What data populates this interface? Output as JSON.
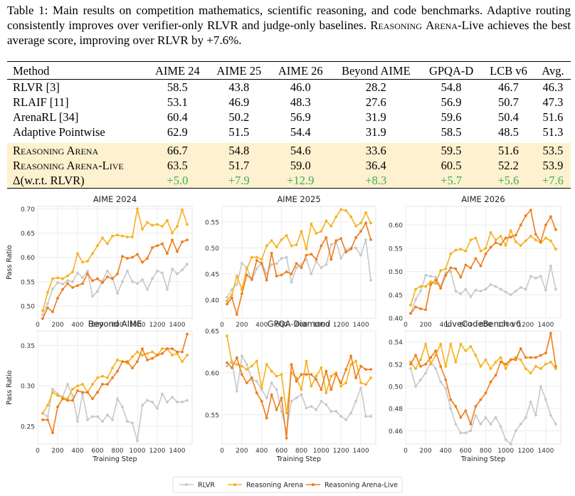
{
  "caption": {
    "label": "Table 1:",
    "text_a": "Main results on competition mathematics, scientific reasoning, and code benchmarks. Adaptive routing consistently improves over verifier-only RLVR and judge-only baselines.",
    "name_a": "Reasoning",
    "name_b": "Arena",
    "text_b": "-Live achieves the best average score, improving over RLVR by",
    "delta": "+7.6%."
  },
  "table": {
    "headers": [
      "Method",
      "AIME 24",
      "AIME 25",
      "AIME 26",
      "Beyond AIME",
      "GPQA-D",
      "LCB v6",
      "Avg."
    ],
    "baselines": [
      {
        "method": "RLVR [3]",
        "values": [
          "58.5",
          "43.8",
          "46.0",
          "28.2",
          "54.8",
          "46.7",
          "46.3"
        ]
      },
      {
        "method": "RLAIF [11]",
        "values": [
          "53.1",
          "46.9",
          "48.3",
          "27.6",
          "56.9",
          "50.7",
          "47.3"
        ]
      },
      {
        "method": "ArenaRL [34]",
        "values": [
          "60.4",
          "50.2",
          "56.9",
          "31.9",
          "59.6",
          "50.4",
          "51.6"
        ]
      },
      {
        "method": "Adaptive Pointwise",
        "values": [
          "62.9",
          "51.5",
          "54.4",
          "31.9",
          "58.5",
          "48.5",
          "51.3"
        ]
      }
    ],
    "ours": [
      {
        "method": "Reasoning Arena",
        "values": [
          "66.7",
          "54.8",
          "54.6",
          "33.6",
          "59.5",
          "51.6",
          "53.5"
        ],
        "bold": [
          true,
          true,
          false,
          false,
          false,
          false,
          false
        ]
      },
      {
        "method": "Reasoning Arena-Live",
        "values": [
          "63.5",
          "51.7",
          "59.0",
          "36.4",
          "60.5",
          "52.2",
          "53.9"
        ],
        "bold": [
          false,
          false,
          true,
          true,
          true,
          true,
          true
        ]
      }
    ],
    "delta": {
      "method": "Δ(w.r.t. RLVR)",
      "values": [
        "+5.0",
        "+7.9",
        "+12.9",
        "+8.3",
        "+5.7",
        "+5.6",
        "+7.6"
      ]
    }
  },
  "chart_data": [
    {
      "type": "line",
      "title": "AIME 2024",
      "ylabel": "Pass Ratio",
      "xlabel": "",
      "xlim": [
        0,
        1550
      ],
      "ylim": [
        0.475,
        0.705
      ],
      "yticks": [
        0.5,
        0.55,
        0.6,
        0.65,
        0.7
      ],
      "xticks": [
        0,
        200,
        400,
        600,
        800,
        1000,
        1200,
        1400
      ],
      "x": [
        50,
        100,
        150,
        200,
        250,
        300,
        350,
        400,
        450,
        500,
        550,
        600,
        650,
        700,
        750,
        800,
        850,
        900,
        950,
        1000,
        1050,
        1100,
        1150,
        1200,
        1250,
        1300,
        1350,
        1400,
        1450,
        1500
      ],
      "series": [
        {
          "name": "RLVR",
          "values": [
            0.482,
            0.505,
            0.535,
            0.548,
            0.545,
            0.552,
            0.55,
            0.568,
            0.558,
            0.572,
            0.52,
            0.53,
            0.552,
            0.572,
            0.558,
            0.526,
            0.55,
            0.572,
            0.55,
            0.546,
            0.554,
            0.534,
            0.556,
            0.572,
            0.568,
            0.534,
            0.576,
            0.566,
            0.574,
            0.586
          ]
        },
        {
          "name": "Reasoning Arena",
          "values": [
            0.49,
            0.528,
            0.556,
            0.558,
            0.556,
            0.562,
            0.57,
            0.608,
            0.59,
            0.592,
            0.608,
            0.624,
            0.64,
            0.628,
            0.644,
            0.646,
            0.644,
            0.642,
            0.642,
            0.7,
            0.658,
            0.672,
            0.666,
            0.668,
            0.664,
            0.676,
            0.65,
            0.664,
            0.698,
            0.668
          ]
        },
        {
          "name": "Reasoning Arena-Live",
          "values": [
            0.474,
            0.496,
            0.488,
            0.516,
            0.534,
            0.546,
            0.538,
            0.542,
            0.546,
            0.566,
            0.552,
            0.556,
            0.548,
            0.56,
            0.556,
            0.566,
            0.602,
            0.598,
            0.6,
            0.606,
            0.59,
            0.598,
            0.62,
            0.624,
            0.628,
            0.608,
            0.636,
            0.612,
            0.632,
            0.636
          ]
        }
      ]
    },
    {
      "type": "line",
      "title": "AIME 2025",
      "ylabel": "",
      "xlabel": "",
      "xlim": [
        0,
        1550
      ],
      "ylim": [
        0.365,
        0.58
      ],
      "yticks": [
        0.4,
        0.45,
        0.5,
        0.55
      ],
      "xticks": [
        0,
        200,
        400,
        600,
        800,
        1000,
        1200,
        1400
      ],
      "x": [
        50,
        100,
        150,
        200,
        250,
        300,
        350,
        400,
        450,
        500,
        550,
        600,
        650,
        700,
        750,
        800,
        850,
        900,
        950,
        1000,
        1050,
        1100,
        1150,
        1200,
        1250,
        1300,
        1350,
        1400,
        1450,
        1500
      ],
      "series": [
        {
          "name": "RLVR",
          "values": [
            0.405,
            0.42,
            0.43,
            0.47,
            0.462,
            0.438,
            0.46,
            0.472,
            0.45,
            0.468,
            0.47,
            0.48,
            0.482,
            0.434,
            0.462,
            0.468,
            0.478,
            0.45,
            0.474,
            0.462,
            0.468,
            0.506,
            0.512,
            0.48,
            0.496,
            0.5,
            0.5,
            0.486,
            0.516,
            0.438
          ]
        },
        {
          "name": "Reasoning Arena",
          "values": [
            0.398,
            0.41,
            0.446,
            0.42,
            0.46,
            0.482,
            0.482,
            0.478,
            0.504,
            0.514,
            0.502,
            0.516,
            0.524,
            0.504,
            0.506,
            0.532,
            0.498,
            0.546,
            0.528,
            0.532,
            0.552,
            0.542,
            0.56,
            0.574,
            0.572,
            0.56,
            0.542,
            0.548,
            0.568,
            0.548
          ]
        },
        {
          "name": "Reasoning Arena-Live",
          "values": [
            0.392,
            0.404,
            0.372,
            0.412,
            0.448,
            0.44,
            0.476,
            0.47,
            0.438,
            0.49,
            0.446,
            0.448,
            0.454,
            0.45,
            0.47,
            0.462,
            0.486,
            0.488,
            0.478,
            0.504,
            0.52,
            0.478,
            0.514,
            0.518,
            0.492,
            0.498,
            0.52,
            0.532,
            0.548,
            0.516
          ]
        }
      ]
    },
    {
      "type": "line",
      "title": "AIME 2026",
      "ylabel": "",
      "xlabel": "",
      "xlim": [
        0,
        1550
      ],
      "ylim": [
        0.4,
        0.64
      ],
      "yticks": [
        0.4,
        0.45,
        0.5,
        0.55,
        0.6
      ],
      "xticks": [
        0,
        200,
        400,
        600,
        800,
        1000,
        1200,
        1400
      ],
      "x": [
        50,
        100,
        150,
        200,
        250,
        300,
        350,
        400,
        450,
        500,
        550,
        600,
        650,
        700,
        750,
        800,
        850,
        900,
        950,
        1000,
        1050,
        1100,
        1150,
        1200,
        1250,
        1300,
        1350,
        1400,
        1450,
        1500
      ],
      "series": [
        {
          "name": "RLVR",
          "values": [
            0.41,
            0.44,
            0.458,
            0.492,
            0.49,
            0.488,
            0.468,
            0.498,
            0.5,
            0.458,
            0.452,
            0.462,
            0.446,
            0.46,
            0.458,
            0.462,
            0.472,
            0.468,
            0.462,
            0.456,
            0.45,
            0.458,
            0.466,
            0.462,
            0.49,
            0.486,
            0.49,
            0.46,
            0.512,
            0.462
          ]
        },
        {
          "name": "Reasoning Arena",
          "values": [
            0.428,
            0.462,
            0.468,
            0.468,
            0.478,
            0.474,
            0.502,
            0.506,
            0.538,
            0.546,
            0.548,
            0.544,
            0.568,
            0.572,
            0.544,
            0.55,
            0.584,
            0.568,
            0.576,
            0.556,
            0.588,
            0.564,
            0.556,
            0.566,
            0.576,
            0.568,
            0.562,
            0.572,
            0.566,
            0.548
          ]
        },
        {
          "name": "Reasoning Arena-Live",
          "values": [
            0.41,
            0.424,
            0.42,
            0.418,
            0.472,
            0.482,
            0.464,
            0.492,
            0.508,
            0.506,
            0.488,
            0.514,
            0.508,
            0.528,
            0.512,
            0.538,
            0.552,
            0.562,
            0.558,
            0.572,
            0.574,
            0.578,
            0.6,
            0.62,
            0.632,
            0.58,
            0.564,
            0.6,
            0.618,
            0.59
          ]
        }
      ]
    },
    {
      "type": "line",
      "title": "Beyond AIME",
      "ylabel": "Pass Ratio",
      "xlabel": "Training Step",
      "xlim": [
        0,
        1550
      ],
      "ylim": [
        0.228,
        0.368
      ],
      "yticks": [
        0.25,
        0.3,
        0.35
      ],
      "xticks": [
        0,
        200,
        400,
        600,
        800,
        1000,
        1200,
        1400
      ],
      "x": [
        50,
        100,
        150,
        200,
        250,
        300,
        350,
        400,
        450,
        500,
        550,
        600,
        650,
        700,
        750,
        800,
        850,
        900,
        950,
        1000,
        1050,
        1100,
        1150,
        1200,
        1250,
        1300,
        1350,
        1400,
        1450,
        1500
      ],
      "series": [
        {
          "name": "RLVR",
          "values": [
            0.266,
            0.262,
            0.296,
            0.29,
            0.286,
            0.302,
            0.288,
            0.256,
            0.29,
            0.258,
            0.262,
            0.262,
            0.256,
            0.264,
            0.258,
            0.284,
            0.274,
            0.256,
            0.254,
            0.232,
            0.276,
            0.282,
            0.28,
            0.272,
            0.29,
            0.28,
            0.286,
            0.28,
            0.28,
            0.282
          ]
        },
        {
          "name": "Reasoning Arena",
          "values": [
            0.266,
            0.276,
            0.292,
            0.288,
            0.286,
            0.284,
            0.296,
            0.3,
            0.302,
            0.292,
            0.302,
            0.31,
            0.312,
            0.31,
            0.322,
            0.332,
            0.33,
            0.328,
            0.336,
            0.342,
            0.338,
            0.34,
            0.342,
            0.338,
            0.346,
            0.346,
            0.338,
            0.34,
            0.33,
            0.338
          ]
        },
        {
          "name": "Reasoning Arena-Live",
          "values": [
            0.258,
            0.258,
            0.242,
            0.274,
            0.284,
            0.282,
            0.282,
            0.294,
            0.292,
            0.292,
            0.284,
            0.292,
            0.302,
            0.302,
            0.31,
            0.318,
            0.33,
            0.33,
            0.322,
            0.33,
            0.346,
            0.332,
            0.334,
            0.338,
            0.34,
            0.346,
            0.346,
            0.342,
            0.342,
            0.364
          ]
        }
      ]
    },
    {
      "type": "line",
      "title": "GPQA-Diamond",
      "ylabel": "",
      "xlabel": "Training Step",
      "xlim": [
        0,
        1550
      ],
      "ylim": [
        0.515,
        0.65
      ],
      "yticks": [
        0.55,
        0.6,
        0.65
      ],
      "xticks": [
        0,
        200,
        400,
        600,
        800,
        1000,
        1200,
        1400
      ],
      "x": [
        50,
        100,
        150,
        200,
        250,
        300,
        350,
        400,
        450,
        500,
        550,
        600,
        650,
        700,
        750,
        800,
        850,
        900,
        950,
        1000,
        1050,
        1100,
        1150,
        1200,
        1250,
        1300,
        1350,
        1400,
        1450,
        1500
      ],
      "series": [
        {
          "name": "RLVR",
          "values": [
            0.608,
            0.614,
            0.578,
            0.62,
            0.61,
            0.592,
            0.59,
            0.58,
            0.57,
            0.588,
            0.58,
            0.554,
            0.53,
            0.566,
            0.57,
            0.574,
            0.558,
            0.56,
            0.556,
            0.566,
            0.562,
            0.554,
            0.554,
            0.548,
            0.544,
            0.552,
            0.566,
            0.582,
            0.548,
            0.548
          ]
        },
        {
          "name": "Reasoning Arena",
          "values": [
            0.644,
            0.612,
            0.61,
            0.608,
            0.604,
            0.608,
            0.614,
            0.582,
            0.61,
            0.602,
            0.596,
            0.598,
            0.552,
            0.6,
            0.594,
            0.58,
            0.614,
            0.584,
            0.596,
            0.606,
            0.576,
            0.596,
            0.6,
            0.584,
            0.588,
            0.61,
            0.614,
            0.588,
            0.586,
            0.594
          ]
        },
        {
          "name": "Reasoning Arena-Live",
          "values": [
            0.612,
            0.606,
            0.618,
            0.598,
            0.588,
            0.594,
            0.576,
            0.566,
            0.546,
            0.574,
            0.556,
            0.57,
            0.522,
            0.61,
            0.59,
            0.598,
            0.598,
            0.598,
            0.592,
            0.58,
            0.602,
            0.58,
            0.598,
            0.588,
            0.604,
            0.62,
            0.594,
            0.608,
            0.604,
            0.604
          ]
        }
      ]
    },
    {
      "type": "line",
      "title": "LiveCodeBench v6",
      "ylabel": "",
      "xlabel": "Training Step",
      "xlim": [
        0,
        1550
      ],
      "ylim": [
        0.448,
        0.55
      ],
      "yticks": [
        0.46,
        0.48,
        0.5,
        0.52,
        0.54
      ],
      "xticks": [
        0,
        200,
        400,
        600,
        800,
        1000,
        1200,
        1400
      ],
      "x": [
        50,
        100,
        150,
        200,
        250,
        300,
        350,
        400,
        450,
        500,
        550,
        600,
        650,
        700,
        750,
        800,
        850,
        900,
        950,
        1000,
        1050,
        1100,
        1150,
        1200,
        1250,
        1300,
        1350,
        1400,
        1450,
        1500
      ],
      "series": [
        {
          "name": "RLVR",
          "values": [
            0.516,
            0.5,
            0.506,
            0.512,
            0.522,
            0.516,
            0.504,
            0.498,
            0.48,
            0.466,
            0.458,
            0.458,
            0.46,
            0.474,
            0.466,
            0.472,
            0.466,
            0.472,
            0.464,
            0.452,
            0.448,
            0.46,
            0.466,
            0.472,
            0.486,
            0.474,
            0.5,
            0.488,
            0.474,
            0.466
          ]
        },
        {
          "name": "Reasoning Arena",
          "values": [
            0.522,
            0.516,
            0.524,
            0.538,
            0.52,
            0.528,
            0.538,
            0.518,
            0.538,
            0.522,
            0.538,
            0.532,
            0.536,
            0.528,
            0.518,
            0.524,
            0.516,
            0.522,
            0.526,
            0.516,
            0.524,
            0.526,
            0.524,
            0.516,
            0.512,
            0.518,
            0.516,
            0.52,
            0.522,
            0.516
          ]
        },
        {
          "name": "Reasoning Arena-Live",
          "values": [
            0.52,
            0.528,
            0.518,
            0.52,
            0.526,
            0.532,
            0.518,
            0.506,
            0.488,
            0.482,
            0.472,
            0.478,
            0.466,
            0.482,
            0.488,
            0.494,
            0.504,
            0.51,
            0.522,
            0.52,
            0.524,
            0.524,
            0.534,
            0.526,
            0.526,
            0.526,
            0.528,
            0.53,
            0.548,
            0.518
          ]
        }
      ]
    }
  ],
  "legend": {
    "labels": [
      "RLVR",
      "Reasoning Arena",
      "Reasoning Arena-Live"
    ]
  },
  "colors": {
    "rlvr": "#c8c8c8",
    "arena": "#f5b21e",
    "live": "#ee7d1c",
    "delta": "#3cae57",
    "highlight": "#fdf1cf"
  }
}
